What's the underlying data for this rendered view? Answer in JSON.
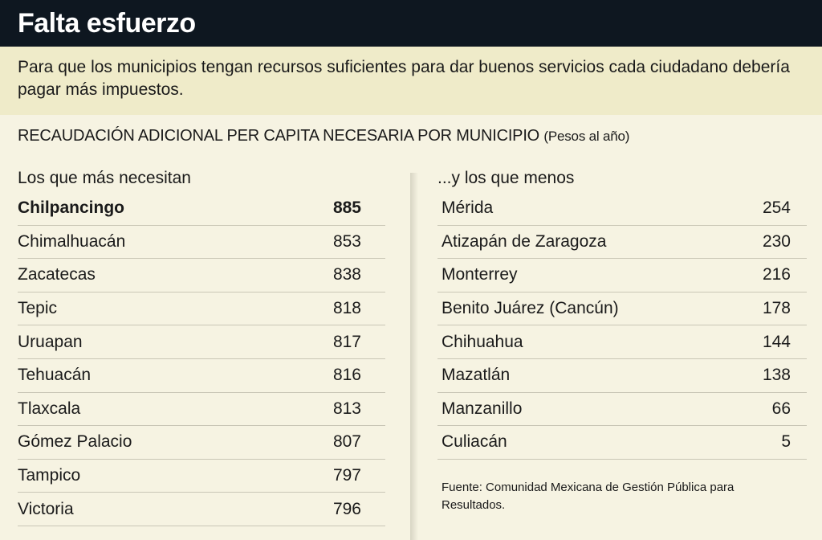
{
  "header": {
    "title": "Falta esfuerzo",
    "subtitle": "Para que los municipios tengan recursos suficientes para dar buenos servicios cada ciudadano debería pagar más impuestos."
  },
  "table_title": "RECAUDACIÓN ADICIONAL PER CAPITA NECESARIA POR MUNICIPIO",
  "units": "(Pesos al año)",
  "left": {
    "heading": "Los que más necesitan",
    "rows": [
      [
        "Chilpancingo",
        885
      ],
      [
        "Chimalhuacán",
        853
      ],
      [
        "Zacatecas",
        838
      ],
      [
        "Tepic",
        818
      ],
      [
        "Uruapan",
        817
      ],
      [
        "Tehuacán",
        816
      ],
      [
        "Tlaxcala",
        813
      ],
      [
        "Gómez Palacio",
        807
      ],
      [
        "Tampico",
        797
      ],
      [
        "Victoria",
        796
      ]
    ]
  },
  "right": {
    "heading": "...y los que menos",
    "rows": [
      [
        "Mérida",
        254
      ],
      [
        "Atizapán de Zaragoza",
        230
      ],
      [
        "Monterrey",
        216
      ],
      [
        "Benito Juárez (Cancún)",
        178
      ],
      [
        "Chihuahua",
        144
      ],
      [
        "Mazatlán",
        138
      ],
      [
        "Manzanillo",
        66
      ],
      [
        "Culiacán",
        5
      ]
    ]
  },
  "source": "Fuente: Comunidad Mexicana de Gestión Pública para Resultados."
}
